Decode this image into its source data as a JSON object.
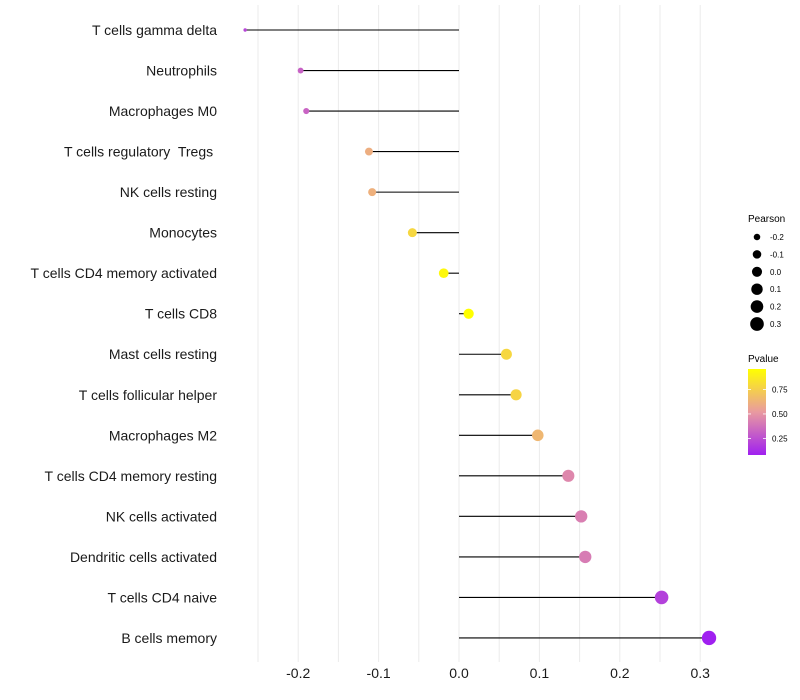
{
  "chart_data": {
    "type": "lollipop",
    "title": "",
    "xlabel": "",
    "ylabel": "",
    "xlim": [
      -0.29,
      0.325
    ],
    "x_ticks": [
      -0.2,
      -0.1,
      0.0,
      0.1,
      0.2,
      0.3
    ],
    "x_tick_labels": [
      "-0.2",
      "-0.1",
      "0.0",
      "0.1",
      "0.2",
      "0.3"
    ],
    "grid": true,
    "categories": [
      "T cells gamma delta",
      "Neutrophils",
      "Macrophages M0",
      "T cells regulatory  Tregs ",
      "NK cells resting",
      "Monocytes",
      "T cells CD4 memory activated",
      "T cells CD8",
      "Mast cells resting",
      "T cells follicular helper",
      "Macrophages M2",
      "T cells CD4 memory resting",
      "NK cells activated",
      "Dendritic cells activated",
      "T cells CD4 naive",
      "B cells memory"
    ],
    "pearson": [
      -0.266,
      -0.197,
      -0.19,
      -0.112,
      -0.108,
      -0.058,
      -0.019,
      0.012,
      0.059,
      0.071,
      0.098,
      0.136,
      0.152,
      0.157,
      0.252,
      0.311
    ],
    "pvalue": [
      0.22,
      0.32,
      0.33,
      0.62,
      0.63,
      0.8,
      0.95,
      0.98,
      0.8,
      0.79,
      0.66,
      0.46,
      0.43,
      0.42,
      0.2,
      0.08
    ],
    "legend": {
      "placement": "right",
      "size": {
        "title": "Pearson",
        "values": [
          -0.2,
          -0.1,
          0.0,
          0.1,
          0.2,
          0.3
        ],
        "labels": [
          "-0.2",
          "-0.1",
          "0.0",
          "0.1",
          "0.2",
          "0.3"
        ]
      },
      "color": {
        "title": "Pvalue",
        "ticks": [
          0.75,
          0.5,
          0.25
        ],
        "tick_labels": [
          "0.75",
          "0.50",
          "0.25"
        ],
        "range": [
          0.08,
          0.98
        ],
        "low_color": "#A020F0",
        "mid_color": "#E99AA0",
        "high_color": "#FFFF00"
      }
    }
  }
}
